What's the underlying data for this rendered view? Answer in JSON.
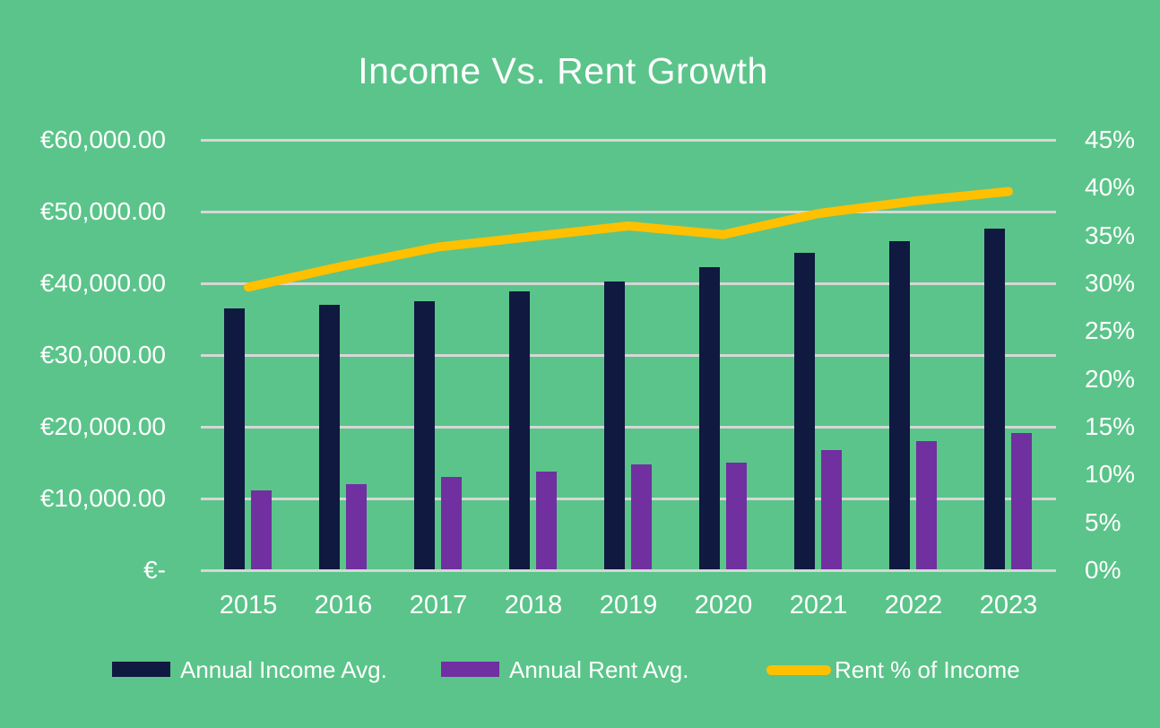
{
  "chart_data": {
    "type": "bar",
    "subtype": "combo-bar-line",
    "title": "Income Vs. Rent Growth",
    "categories": [
      "2015",
      "2016",
      "2017",
      "2018",
      "2019",
      "2020",
      "2021",
      "2022",
      "2023"
    ],
    "series": [
      {
        "name": "Annual Income Avg.",
        "type": "bar",
        "axis": "left",
        "color": "#10193F",
        "values": [
          36500,
          37000,
          37500,
          38900,
          40300,
          42300,
          44300,
          45900,
          47600
        ]
      },
      {
        "name": "Annual Rent Avg.",
        "type": "bar",
        "axis": "left",
        "color": "#7030A0",
        "values": [
          11100,
          12000,
          13000,
          13800,
          14700,
          15000,
          16700,
          18000,
          19100
        ]
      },
      {
        "name": "Rent % of Income",
        "type": "line",
        "axis": "right",
        "color": "#FFC000",
        "values": [
          29.6,
          31.8,
          33.8,
          34.9,
          36.0,
          35.1,
          37.3,
          38.6,
          39.6
        ]
      }
    ],
    "left_axis": {
      "min": 0,
      "max": 60000,
      "ticks": [
        "€60,000.00",
        "€50,000.00",
        "€40,000.00",
        "€30,000.00",
        "€20,000.00",
        "€10,000.00",
        "€-"
      ]
    },
    "right_axis": {
      "min": 0,
      "max": 45,
      "ticks": [
        "45%",
        "40%",
        "35%",
        "30%",
        "25%",
        "20%",
        "15%",
        "10%",
        "5%",
        "0%"
      ]
    },
    "grid": true,
    "legend_position": "bottom",
    "colors": {
      "background": "#5BC48A",
      "gridline": "#D6D6D6",
      "text": "#FFFFFF"
    }
  }
}
